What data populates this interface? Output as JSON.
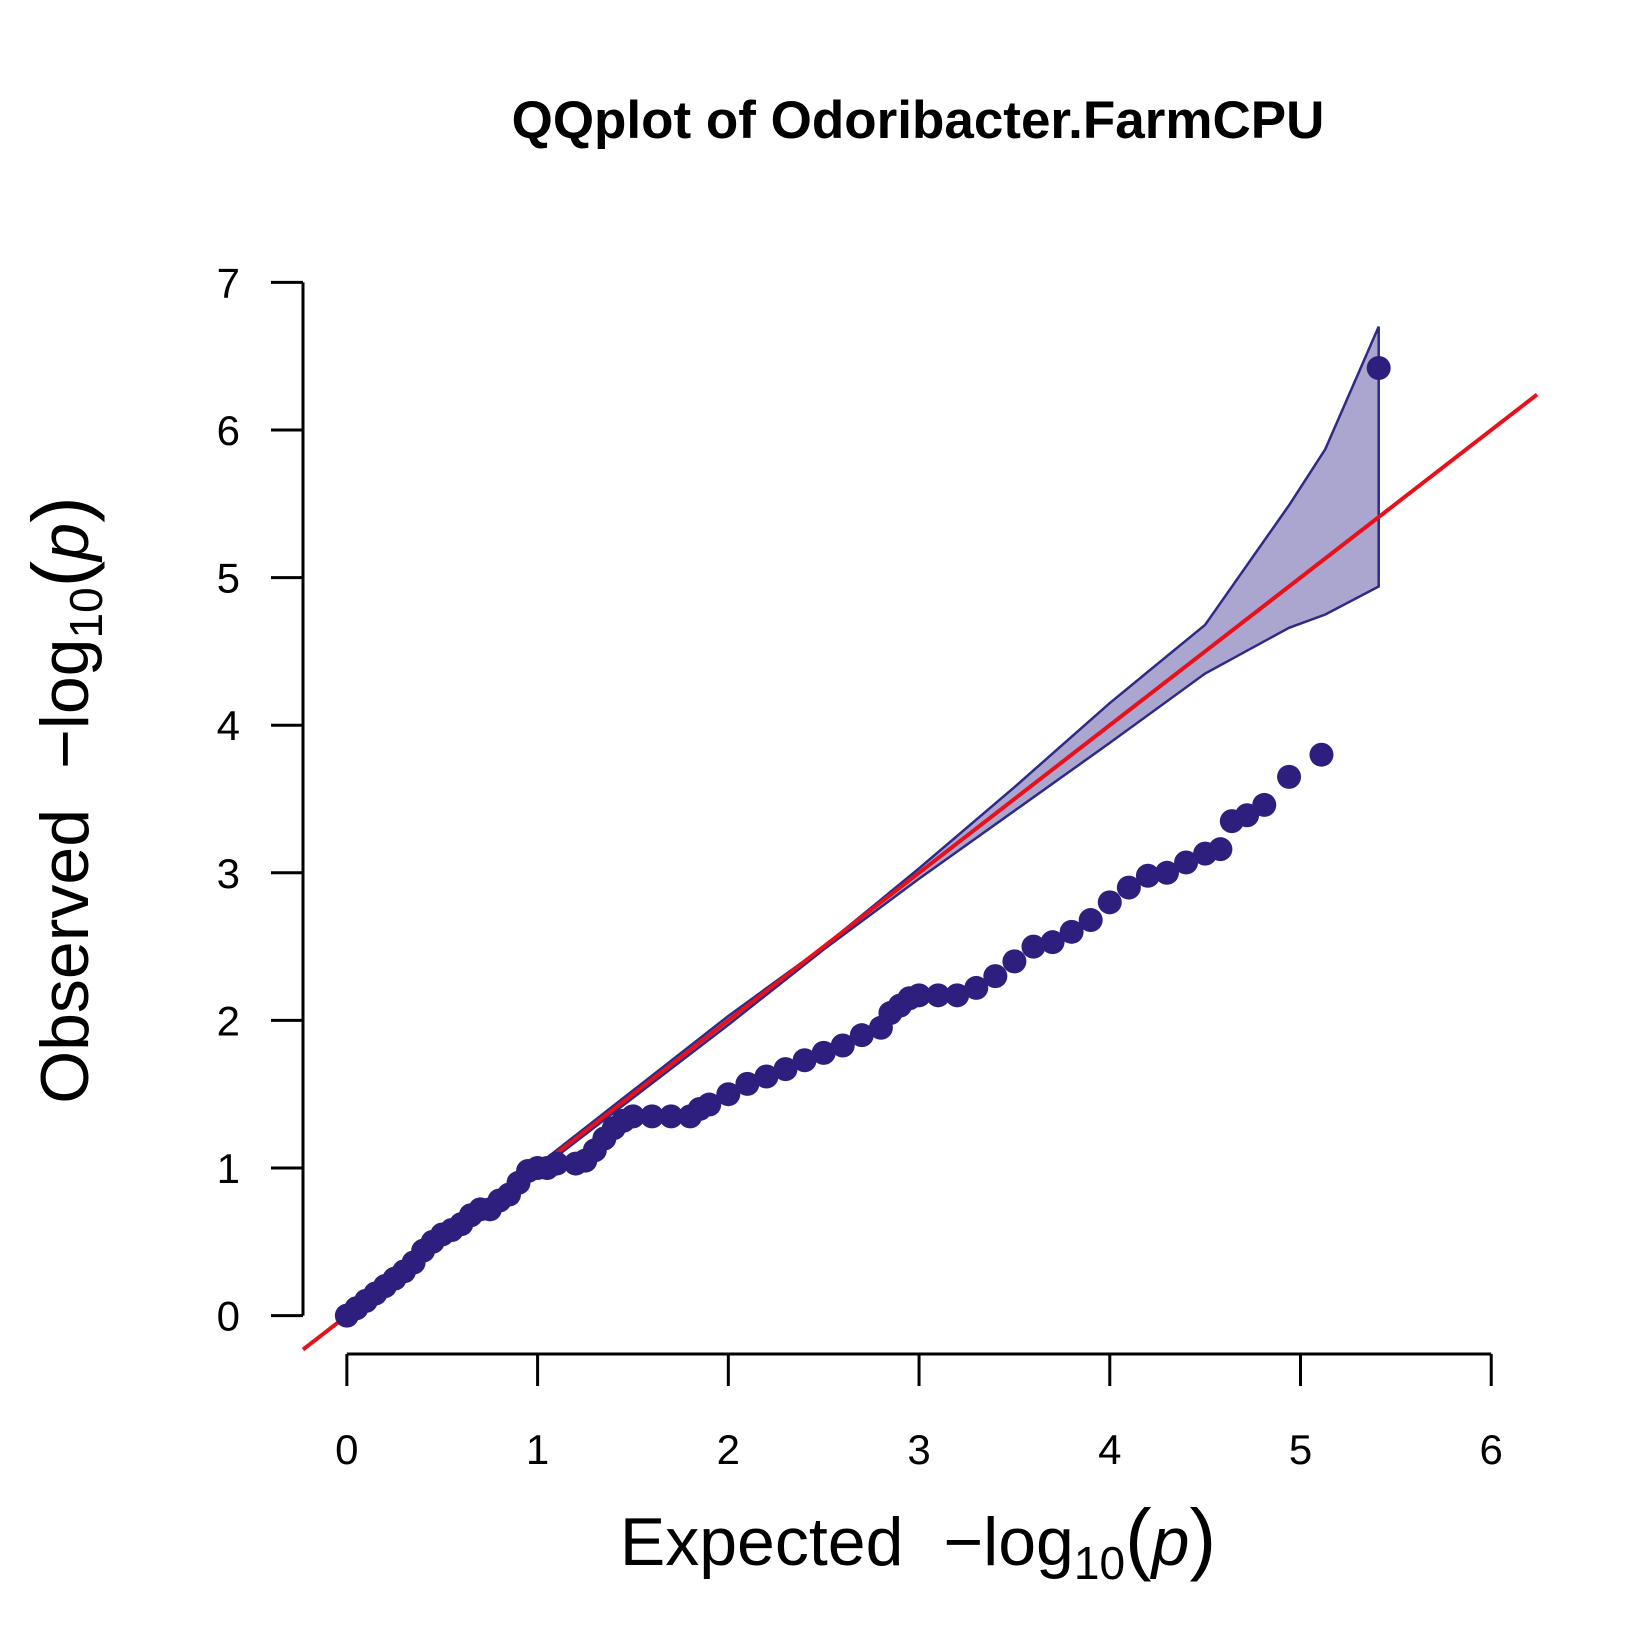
{
  "chart_data": {
    "type": "qq",
    "title": "QQplot of Odoribacter.FarmCPU",
    "x_label": [
      "Expected",
      "−log",
      "10",
      "(",
      "p",
      ")"
    ],
    "y_label": [
      "Observed",
      "−log",
      "10",
      "(",
      "p",
      ")"
    ],
    "xlim": [
      -0.23,
      6.24
    ],
    "ylim": [
      -0.26,
      7.26
    ],
    "xticks": [
      0,
      1,
      2,
      3,
      4,
      5,
      6
    ],
    "yticks": [
      0,
      1,
      2,
      3,
      4,
      5,
      6,
      7
    ],
    "reference_color": "#e8101a",
    "band": {
      "color": "#aaa6cf",
      "edge_color": "#2e2a86",
      "x": [
        0,
        1,
        2,
        2.5,
        3,
        3.5,
        4,
        4.5,
        4.94,
        5.13,
        5.41
      ],
      "upper": [
        0,
        1.02,
        2.03,
        2.5,
        3.03,
        3.58,
        4.15,
        4.68,
        5.49,
        5.87,
        6.7
      ],
      "lower": [
        0,
        0.98,
        1.97,
        2.48,
        2.96,
        3.42,
        3.88,
        4.35,
        4.66,
        4.75,
        4.94
      ]
    },
    "series": [
      {
        "color": "#2e1f7f",
        "x": [
          0,
          0.05,
          0.1,
          0.15,
          0.2,
          0.25,
          0.3,
          0.35,
          0.4,
          0.45,
          0.5,
          0.55,
          0.6,
          0.65,
          0.7,
          0.75,
          0.8,
          0.85,
          0.9,
          0.95,
          1.0,
          1.05,
          1.1,
          1.2,
          1.25,
          1.3,
          1.35,
          1.4,
          1.45,
          1.5,
          1.6,
          1.7,
          1.8,
          1.85,
          1.9,
          2.0,
          2.1,
          2.2,
          2.3,
          2.4,
          2.5,
          2.6,
          2.7,
          2.8,
          2.85,
          2.9,
          2.95,
          3.0,
          3.1,
          3.2,
          3.3,
          3.4,
          3.5,
          3.6,
          3.7,
          3.8,
          3.9,
          4.0,
          4.1,
          4.2,
          4.3,
          4.4,
          4.5,
          4.58,
          4.64,
          4.72,
          4.81,
          4.94,
          5.11,
          5.41
        ],
        "values": [
          0,
          0.05,
          0.1,
          0.15,
          0.2,
          0.25,
          0.3,
          0.36,
          0.44,
          0.5,
          0.55,
          0.58,
          0.62,
          0.68,
          0.72,
          0.72,
          0.78,
          0.82,
          0.9,
          0.98,
          1.0,
          1.0,
          1.03,
          1.03,
          1.05,
          1.12,
          1.2,
          1.27,
          1.32,
          1.35,
          1.35,
          1.35,
          1.35,
          1.4,
          1.43,
          1.5,
          1.57,
          1.62,
          1.67,
          1.73,
          1.78,
          1.83,
          1.9,
          1.95,
          2.05,
          2.1,
          2.15,
          2.17,
          2.17,
          2.17,
          2.22,
          2.3,
          2.4,
          2.5,
          2.53,
          2.6,
          2.68,
          2.8,
          2.9,
          2.98,
          3.0,
          3.07,
          3.13,
          3.16,
          3.35,
          3.39,
          3.46,
          3.65,
          3.8,
          6.42
        ]
      }
    ]
  }
}
